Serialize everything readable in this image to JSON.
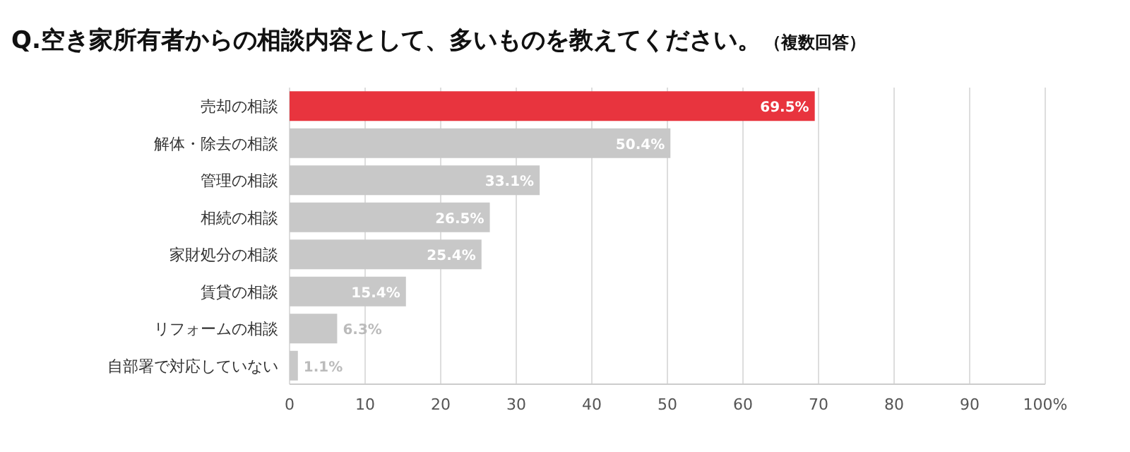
{
  "chart_data": {
    "type": "bar",
    "orientation": "horizontal",
    "title": "Q.空き家所有者からの相談内容として、多いものを教えてください。",
    "subtitle": "（複数回答）",
    "categories": [
      "売却の相談",
      "解体・除去の相談",
      "管理の相談",
      "相続の相談",
      "家財処分の相談",
      "賃貸の相談",
      "リフォームの相談",
      "自部署で対応していない"
    ],
    "values": [
      69.5,
      50.4,
      33.1,
      26.5,
      25.4,
      15.4,
      6.3,
      1.1
    ],
    "colors": [
      "#e8343e",
      "#c8c8c8",
      "#c8c8c8",
      "#c8c8c8",
      "#c8c8c8",
      "#c8c8c8",
      "#c8c8c8",
      "#c8c8c8"
    ],
    "value_labels": [
      "69.5%",
      "50.4%",
      "33.1%",
      "26.5%",
      "25.4%",
      "15.4%",
      "6.3%",
      "1.1%"
    ],
    "xlim": [
      0,
      100
    ],
    "xticks": [
      0,
      10,
      20,
      30,
      40,
      50,
      60,
      70,
      80,
      90,
      {
        "value": 100,
        "label": "100%"
      }
    ],
    "grid": "x"
  }
}
